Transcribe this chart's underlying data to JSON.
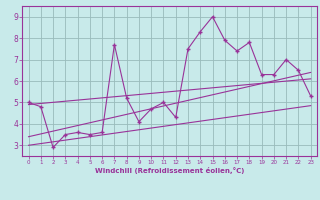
{
  "xlabel": "Windchill (Refroidissement éolien,°C)",
  "background_color": "#c8eaea",
  "line_color": "#993399",
  "grid_color": "#99bbbb",
  "xlim": [
    -0.5,
    23.5
  ],
  "ylim": [
    2.5,
    9.5
  ],
  "xticks": [
    0,
    1,
    2,
    3,
    4,
    5,
    6,
    7,
    8,
    9,
    10,
    11,
    12,
    13,
    14,
    15,
    16,
    17,
    18,
    19,
    20,
    21,
    22,
    23
  ],
  "yticks": [
    3,
    4,
    5,
    6,
    7,
    8,
    9
  ],
  "series1_x": [
    0,
    1,
    2,
    3,
    4,
    5,
    6,
    7,
    8,
    9,
    10,
    11,
    12,
    13,
    14,
    15,
    16,
    17,
    18,
    19,
    20,
    21,
    22,
    23
  ],
  "series1_y": [
    5.0,
    4.8,
    2.9,
    3.5,
    3.6,
    3.5,
    3.6,
    7.7,
    5.2,
    4.1,
    4.7,
    5.0,
    4.3,
    7.5,
    8.3,
    9.0,
    7.9,
    7.4,
    7.8,
    6.3,
    6.3,
    7.0,
    6.5,
    5.3
  ],
  "trend1_x": [
    0,
    23
  ],
  "trend1_y": [
    3.0,
    4.85
  ],
  "trend2_x": [
    0,
    23
  ],
  "trend2_y": [
    3.4,
    6.4
  ],
  "trend3_x": [
    0,
    23
  ],
  "trend3_y": [
    4.9,
    6.1
  ]
}
